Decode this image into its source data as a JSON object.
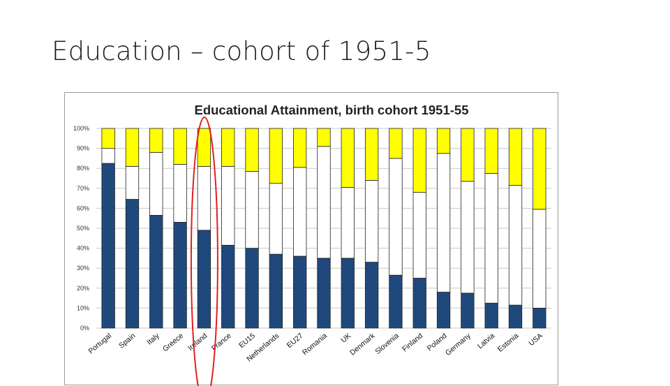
{
  "slide": {
    "title": "Education – cohort of 1951-5"
  },
  "colors": {
    "low": "#1f497d",
    "medium": "#ffffff",
    "high": "#ffff00",
    "bar_outline": "#222222",
    "grid": "#c8c8c8",
    "highlight_ellipse": "#e0201f"
  },
  "annotation": {
    "highlighted_category": "Ireland",
    "shape": "red ellipse"
  },
  "chart_data": {
    "type": "bar",
    "stacked": true,
    "title": "Educational Attainment, birth cohort 1951-55",
    "xlabel": "",
    "ylabel": "",
    "ylim": [
      0,
      100
    ],
    "y_ticks": [
      "0%",
      "10%",
      "20%",
      "30%",
      "40%",
      "50%",
      "60%",
      "70%",
      "80%",
      "90%",
      "100%"
    ],
    "grid": true,
    "legend": "none",
    "categories": [
      "Portugal",
      "Spain",
      "Italy",
      "Greece",
      "Ireland",
      "France",
      "EU15",
      "Netherlands",
      "EU27",
      "Romania",
      "UK",
      "Denmark",
      "Slovenia",
      "Finland",
      "Poland",
      "Germany",
      "Latvia",
      "Estonia",
      "USA"
    ],
    "series": [
      {
        "values": [
          82.5,
          64.5,
          56.5,
          53,
          49,
          41.5,
          40,
          37,
          36,
          35,
          35,
          33,
          26.5,
          25,
          18,
          17.5,
          12.5,
          11.5,
          10
        ]
      },
      {
        "values": [
          7.5,
          16.5,
          31.5,
          29,
          32,
          39.5,
          38.5,
          35.5,
          44.5,
          56,
          35.5,
          41,
          58.5,
          43,
          69.5,
          56,
          65,
          60,
          49.5
        ]
      },
      {
        "values": [
          10,
          19,
          12,
          18,
          19,
          19,
          21.5,
          27.5,
          19.5,
          9,
          29.5,
          26,
          15,
          32,
          12.5,
          26.5,
          22.5,
          28.5,
          40.5
        ]
      }
    ]
  }
}
